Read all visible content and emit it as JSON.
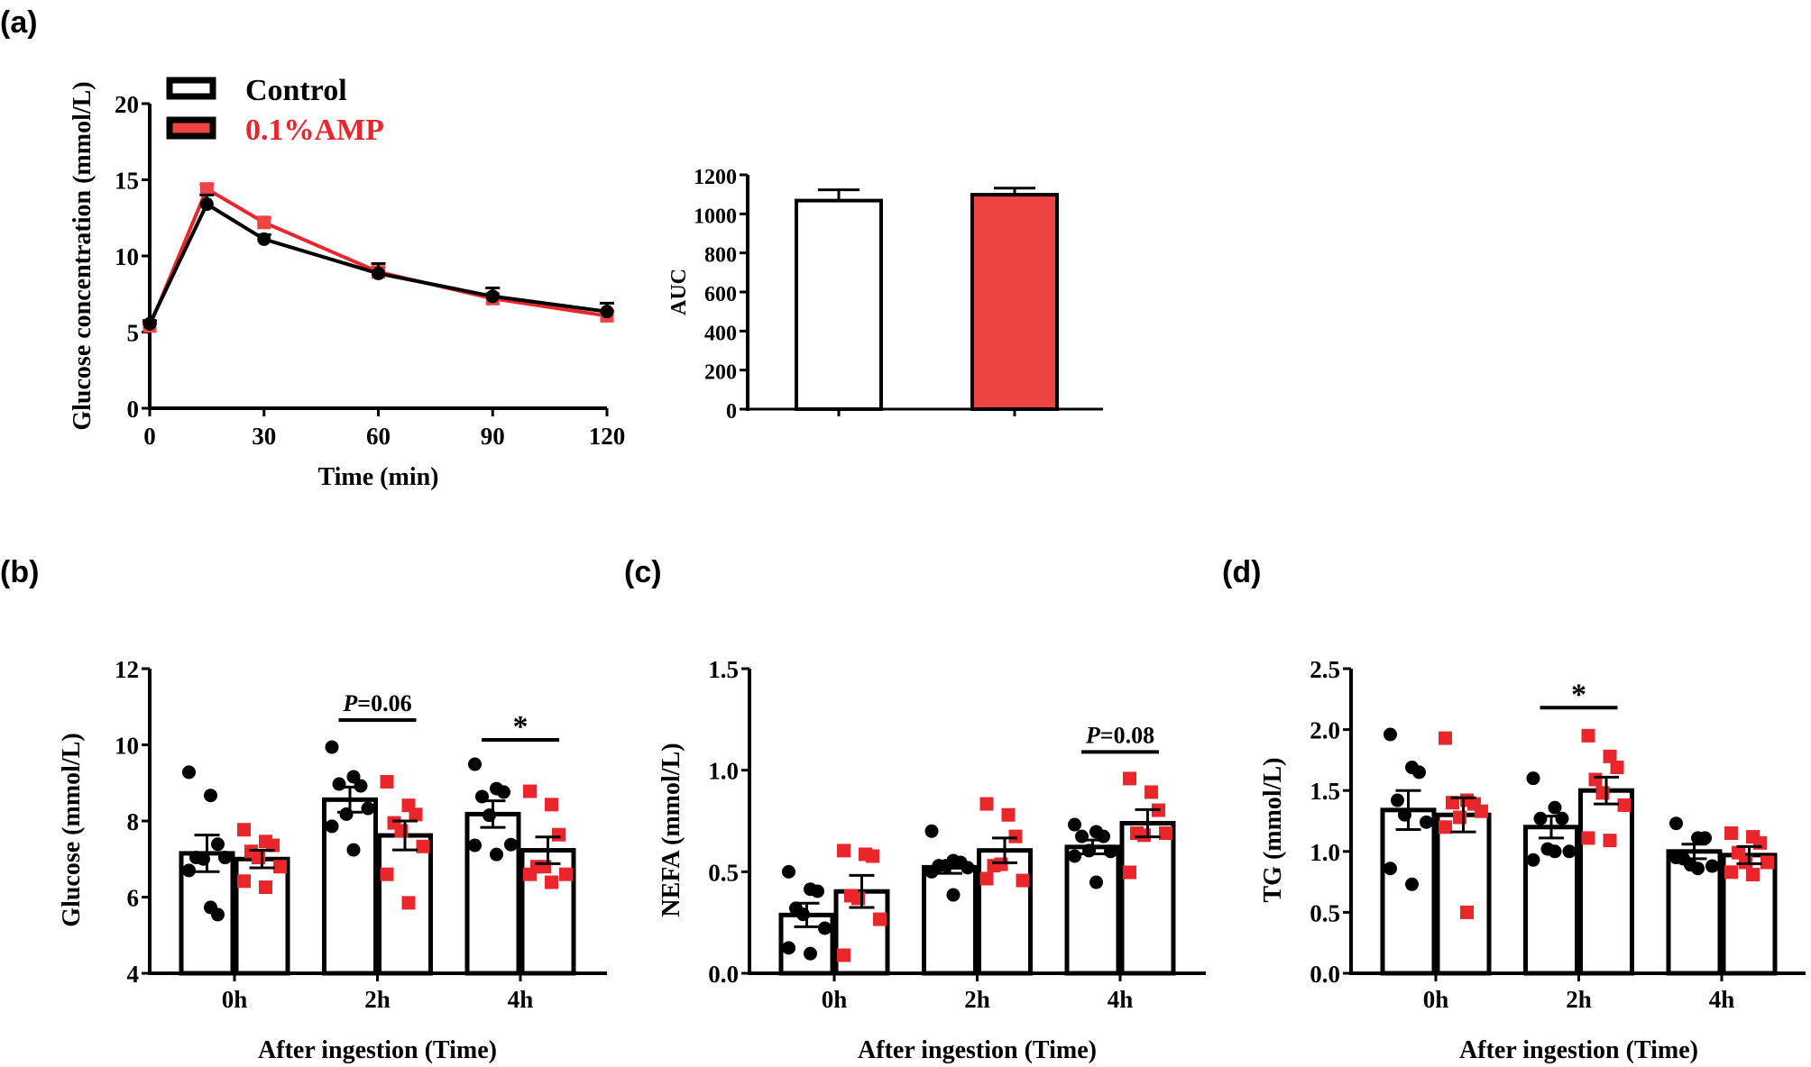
{
  "colors": {
    "control": "#000000",
    "amp": "#e8262c",
    "amp_bar": "#ef4444",
    "control_fill": "#ffffff"
  },
  "legend": {
    "items": [
      {
        "label": "Control",
        "color": "#000000"
      },
      {
        "label": "0.1%AMP",
        "color": "#e8262c"
      }
    ]
  },
  "chart_data": [
    {
      "id": "a-line",
      "panel_label": "(a)",
      "type": "line",
      "xlabel": "Time (min)",
      "ylabel": "Glucose concentration (mmol/L)",
      "xlim": [
        0,
        120
      ],
      "ylim": [
        0,
        20
      ],
      "xticks": [
        0,
        30,
        60,
        90,
        120
      ],
      "yticks": [
        0,
        5,
        10,
        15,
        20
      ],
      "x": [
        0,
        15,
        30,
        60,
        90,
        120
      ],
      "legend_position": "top-left",
      "series": [
        {
          "name": "Control",
          "marker": "circle",
          "values": [
            5.55,
            13.4,
            11.1,
            8.85,
            7.35,
            6.35
          ],
          "sem": [
            0.2,
            0.6,
            0.3,
            0.65,
            0.55,
            0.55
          ]
        },
        {
          "name": "0.1%AMP",
          "marker": "square",
          "values": [
            5.4,
            14.4,
            12.2,
            8.95,
            7.2,
            6.07
          ],
          "sem": [
            0.15,
            0.3,
            0.3,
            0.3,
            0.3,
            0.3
          ]
        }
      ]
    },
    {
      "id": "a-auc",
      "type": "bar",
      "xlabel": "",
      "ylabel": "AUC",
      "ylim": [
        0,
        1200
      ],
      "yticks": [
        0,
        200,
        400,
        600,
        800,
        1000,
        1200
      ],
      "categories": [
        "Control",
        "0.1%AMP"
      ],
      "values": [
        1068,
        1098
      ],
      "sem": [
        55,
        34
      ]
    },
    {
      "id": "b-glucose",
      "panel_label": "(b)",
      "type": "bar",
      "xlabel": "After ingestion (Time)",
      "ylabel": "Glucose (mmol/L)",
      "ylim": [
        4,
        12
      ],
      "yticks": [
        4,
        6,
        8,
        10,
        12
      ],
      "tick_format": 0,
      "categories": [
        "0h",
        "2h",
        "4h"
      ],
      "series": [
        {
          "name": "Control",
          "values": [
            7.15,
            8.56,
            8.18
          ],
          "sem": [
            0.48,
            0.33,
            0.35
          ],
          "points": [
            [
              9.28,
              8.67,
              7.39,
              7.04,
              7.0,
              7.04,
              6.7,
              5.73,
              5.54
            ],
            [
              9.94,
              9.16,
              8.92,
              8.97,
              8.18,
              8.33,
              7.86,
              7.24
            ],
            [
              9.49,
              8.85,
              8.76,
              8.64,
              8.15,
              7.38,
              7.36,
              7.12
            ]
          ]
        },
        {
          "name": "0.1%AMP",
          "values": [
            7.0,
            7.62,
            7.23
          ],
          "sem": [
            0.23,
            0.38,
            0.35
          ],
          "points": [
            [
              7.77,
              7.46,
              7.36,
              7.2,
              7.04,
              6.8,
              6.42,
              6.26
            ],
            [
              9.03,
              8.41,
              8.17,
              7.95,
              7.74,
              7.33,
              6.6,
              5.85
            ],
            [
              8.78,
              8.43,
              7.64,
              6.8,
              6.8,
              6.6,
              6.6,
              6.39
            ]
          ]
        }
      ],
      "annotations": [
        {
          "category": "2h",
          "text": "P=0.06",
          "italic_prefix": "P",
          "level": 10.65
        },
        {
          "category": "4h",
          "text": "*",
          "level": 10.13
        }
      ]
    },
    {
      "id": "c-nefa",
      "panel_label": "(c)",
      "type": "bar",
      "xlabel": "After ingestion (Time)",
      "ylabel": "NEFA (mmol/L)",
      "ylim": [
        0,
        1.5
      ],
      "yticks": [
        0,
        0.5,
        1.0,
        1.5
      ],
      "tick_format": 1,
      "categories": [
        "0h",
        "2h",
        "4h"
      ],
      "series": [
        {
          "name": "Control",
          "values": [
            0.287,
            0.522,
            0.622
          ],
          "sem": [
            0.058,
            0.03,
            0.034
          ],
          "points": [
            [
              0.5,
              0.414,
              0.404,
              0.32,
              0.29,
              0.222,
              0.125,
              0.097
            ],
            [
              0.7,
              0.555,
              0.546,
              0.53,
              0.53,
              0.52,
              0.5,
              0.386
            ],
            [
              0.732,
              0.697,
              0.674,
              0.674,
              0.604,
              0.6,
              0.577,
              0.448
            ]
          ]
        },
        {
          "name": "0.1%AMP",
          "values": [
            0.403,
            0.605,
            0.739
          ],
          "sem": [
            0.079,
            0.061,
            0.067
          ],
          "points": [
            [
              0.604,
              0.586,
              0.577,
              0.382,
              0.369,
              0.266,
              0.089
            ],
            [
              0.834,
              0.78,
              0.674,
              0.53,
              0.537,
              0.457,
              0.466
            ],
            [
              0.959,
              0.892,
              0.803,
              0.69,
              0.68,
              0.69,
              0.497
            ]
          ]
        }
      ],
      "annotations": [
        {
          "category": "4h",
          "text": "P=0.08",
          "italic_prefix": "P",
          "level": 1.09
        }
      ]
    },
    {
      "id": "d-tg",
      "panel_label": "(d)",
      "type": "bar",
      "xlabel": "After ingestion (Time)",
      "ylabel": "TG (mmol/L)",
      "ylim": [
        0,
        2.5
      ],
      "yticks": [
        0,
        0.5,
        1.0,
        1.5,
        2.0,
        2.5
      ],
      "tick_format": 1,
      "categories": [
        "0h",
        "2h",
        "4h"
      ],
      "series": [
        {
          "name": "Control",
          "values": [
            1.34,
            1.2,
            1.0
          ],
          "sem": [
            0.16,
            0.09,
            0.06
          ],
          "points": [
            [
              1.96,
              1.69,
              1.65,
              1.42,
              1.3,
              1.24,
              0.86,
              0.73
            ],
            [
              1.6,
              1.36,
              1.27,
              1.27,
              1.02,
              1.0,
              0.93,
              1.0
            ],
            [
              1.23,
              1.11,
              1.11,
              0.94,
              0.89,
              0.88,
              0.95,
              0.86
            ]
          ]
        },
        {
          "name": "0.1%AMP",
          "values": [
            1.3,
            1.5,
            0.97
          ],
          "sem": [
            0.14,
            0.11,
            0.07
          ],
          "points": [
            [
              1.93,
              1.42,
              1.39,
              1.4,
              1.28,
              1.33,
              1.2,
              0.5
            ],
            [
              1.95,
              1.78,
              1.69,
              1.59,
              1.48,
              1.38,
              1.11,
              1.09
            ],
            [
              1.15,
              1.12,
              1.07,
              0.99,
              0.91,
              0.91,
              0.83,
              0.81
            ]
          ]
        }
      ],
      "annotations": [
        {
          "category": "2h",
          "text": "*",
          "level": 2.18
        }
      ]
    }
  ]
}
